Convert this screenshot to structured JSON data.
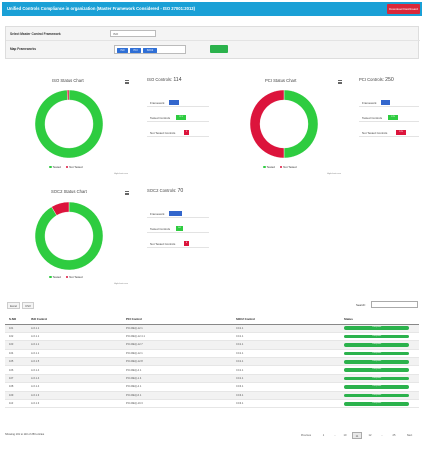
{
  "header": {
    "title": "Unified Controls Compliance in organization (Master Framework Considered - ISO 27001:2013)",
    "download_label": "Download Dashboard"
  },
  "form": {
    "master_label": "Select Master Control Framework",
    "master_value": "ISO",
    "map_label": "Map Frameworks",
    "tags": [
      "ISO",
      "PCI",
      "SOC2"
    ]
  },
  "colors": {
    "tested": "#2ecc40",
    "not_tested": "#dc143c",
    "bar_blue": "#3366cc",
    "accent": "#1aa0d6"
  },
  "chart_data": [
    {
      "type": "pie",
      "title": "ISO Status Chart",
      "categories": [
        "Tested",
        "Not Tested"
      ],
      "values": [
        113,
        1
      ],
      "legend": "bottom",
      "credit": "Highcharts.com"
    },
    {
      "type": "pie",
      "title": "PCI Status Chart",
      "categories": [
        "Tested",
        "Not Tested"
      ],
      "values": [
        125,
        125
      ],
      "legend": "bottom",
      "credit": "Highcharts.com"
    },
    {
      "type": "pie",
      "title": "SOC2 Status Chart",
      "categories": [
        "Tested",
        "Not Tested"
      ],
      "values": [
        64,
        6
      ],
      "legend": "bottom",
      "credit": "Highcharts.com"
    }
  ],
  "summaries": [
    {
      "label": "ISO Controls:",
      "count": "114",
      "framework_label": "Framework",
      "tested_label": "Tested Controls",
      "tested_value": "113",
      "not_tested_label": "Not Tested Controls",
      "not_tested_value": "1"
    },
    {
      "label": "PCI Controls:",
      "count": "250",
      "framework_label": "Framework",
      "tested_label": "Tested Controls",
      "tested_value": "125",
      "not_tested_label": "Not Tested Controls",
      "not_tested_value": "125"
    },
    {
      "label": "SOC2 Controls:",
      "count": "70",
      "framework_label": "Framework",
      "tested_label": "Tested Controls",
      "tested_value": "64",
      "not_tested_label": "Not Tested Controls",
      "not_tested_value": "6"
    }
  ],
  "table": {
    "buttons": [
      "Excel",
      "CSV"
    ],
    "search_label": "Search:",
    "columns": [
      "S.NO",
      "ISO Control",
      "PCI Control",
      "SOC2 Control",
      "Status"
    ],
    "rows": [
      [
        "101",
        "A.6.1.1",
        "PCI-REQ-12.1",
        "CC1.1",
        "Compliant"
      ],
      [
        "102",
        "A.6.1.1",
        "PCI-REQ-12.4.1",
        "CC1.1",
        "Compliant"
      ],
      [
        "103",
        "A.6.1.1",
        "PCI-REQ-12.7",
        "CC1.1",
        "Compliant"
      ],
      [
        "104",
        "A.6.1.1",
        "PCI-REQ-12.1",
        "CC1.1",
        "Compliant"
      ],
      [
        "105",
        "A.6.1.5",
        "PCI-REQ-12.8",
        "CC1.1",
        "Compliant"
      ],
      [
        "106",
        "A.6.1.4",
        "PCI-REQ-4.1",
        "CC1.1",
        "Compliant"
      ],
      [
        "107",
        "A.6.1.4",
        "PCI-REQ-1.4",
        "CC1.1",
        "Compliant"
      ],
      [
        "108",
        "A.6.1.4",
        "PCI-REQ-4.1",
        "CC3.1",
        "Compliant"
      ],
      [
        "109",
        "A.6.1.3",
        "PCI-REQ-6.1",
        "CC3.1",
        "Compliant"
      ],
      [
        "110",
        "A.6.1.3",
        "PCI-REQ-10.3",
        "CC3.1",
        "Compliant"
      ]
    ],
    "info": "Showing 101 to 110 of 250 entries",
    "pagination": [
      "Previous",
      "1",
      "...",
      "10",
      "11",
      "12",
      "...",
      "25",
      "Next"
    ],
    "active_page": "11"
  }
}
